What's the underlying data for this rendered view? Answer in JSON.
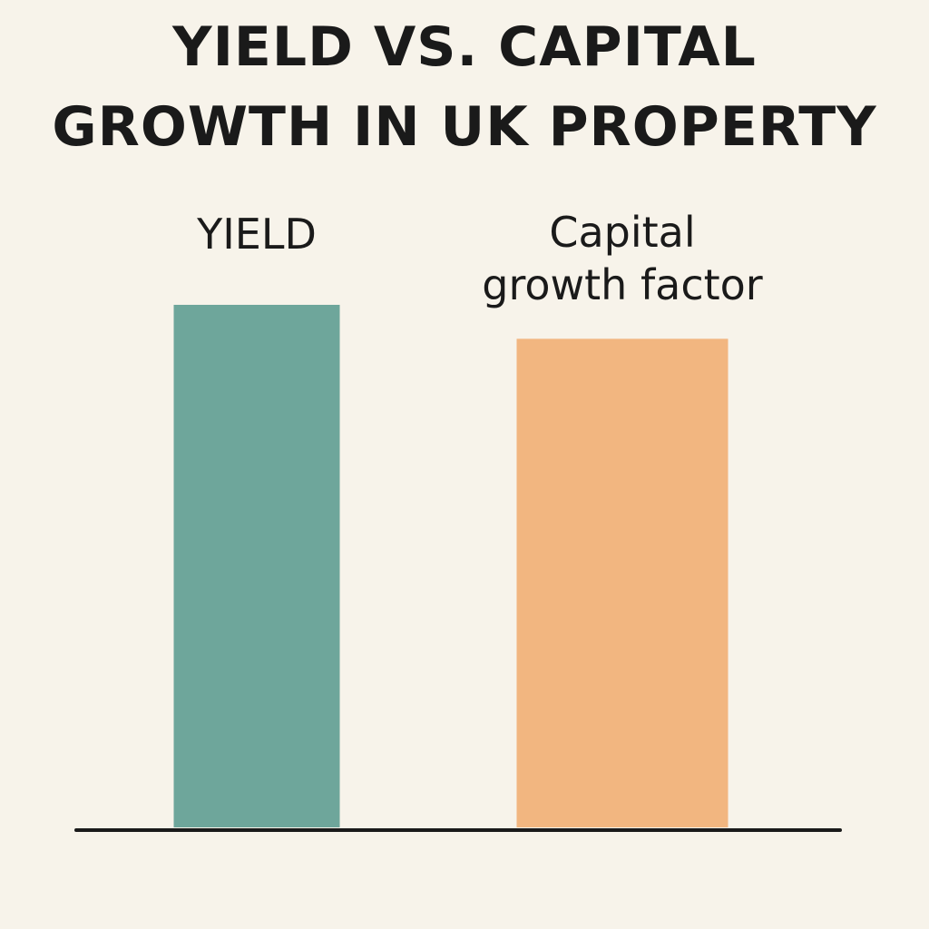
{
  "chart_data": {
    "type": "bar",
    "title_lines": [
      "YIELD VS. CAPITAL",
      "GROWTH IN UK PROPERTY"
    ],
    "categories": [
      {
        "label_lines": [
          "YIELD"
        ],
        "color": "#6ea69b"
      },
      {
        "label_lines": [
          "Capital",
          "growth factor"
        ],
        "color": "#f2b680"
      }
    ],
    "values": [
      100,
      93.5
    ],
    "ylim": [
      0,
      100
    ],
    "grid": false,
    "axis_color": "#1a1a1a"
  }
}
